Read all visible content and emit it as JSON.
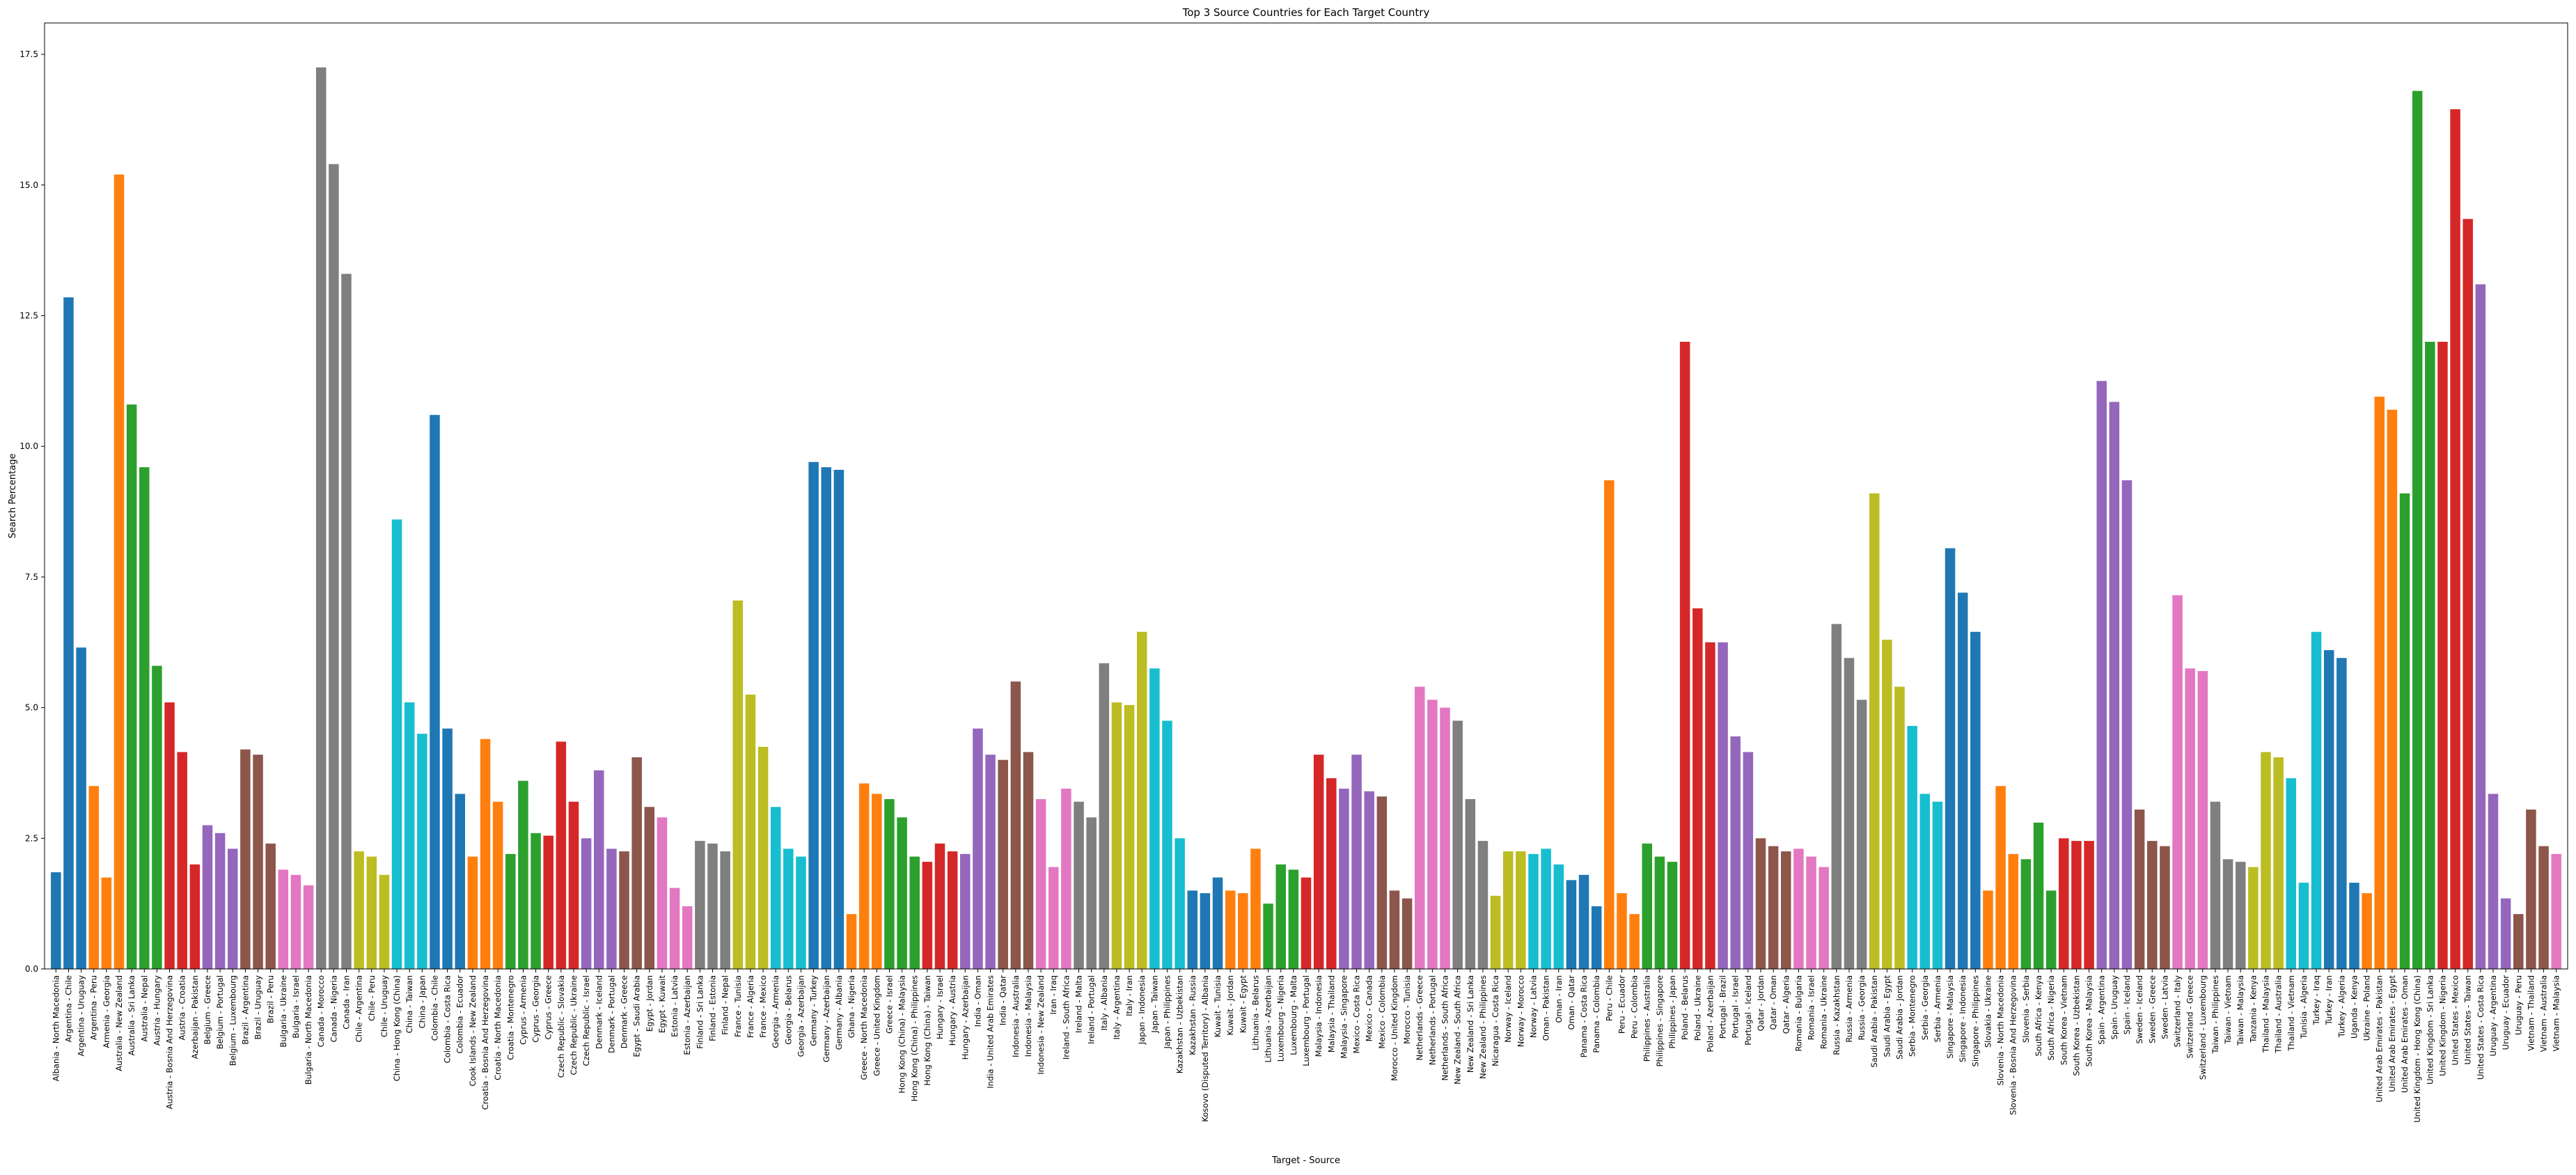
{
  "chart_data": {
    "type": "bar",
    "title": "Top 3 Source Countries for Each Target Country",
    "xlabel": "Target - Source",
    "ylabel": "Search Percentage",
    "ylim": [
      0,
      18.1
    ],
    "y_ticks": [
      "0.0",
      "2.5",
      "5.0",
      "7.5",
      "10.0",
      "12.5",
      "15.0",
      "17.5"
    ],
    "grid": false,
    "legend": "none",
    "palette": [
      "#1f77b4",
      "#ff7f0e",
      "#2ca02c",
      "#d62728",
      "#9467bd",
      "#8c564b",
      "#e377c2",
      "#7f7f7f",
      "#bcbd22",
      "#17becf"
    ],
    "categories": [
      "Albania - North Macedonia",
      "Argentina - Chile",
      "Argentina - Uruguay",
      "Argentina - Peru",
      "Armenia - Georgia",
      "Australia - New Zealand",
      "Australia - Sri Lanka",
      "Australia - Nepal",
      "Austria - Hungary",
      "Austria - Bosnia And Herzegovina",
      "Austria - Croatia",
      "Azerbaijan - Pakistan",
      "Belgium - Greece",
      "Belgium - Portugal",
      "Belgium - Luxembourg",
      "Brazil - Argentina",
      "Brazil - Uruguay",
      "Brazil - Peru",
      "Bulgaria - Ukraine",
      "Bulgaria - Israel",
      "Bulgaria - North Macedonia",
      "Canada - Morocco",
      "Canada - Nigeria",
      "Canada - Iran",
      "Chile - Argentina",
      "Chile - Peru",
      "Chile - Uruguay",
      "China - Hong Kong (China)",
      "China - Taiwan",
      "China - Japan",
      "Colombia - Chile",
      "Colombia - Costa Rica",
      "Colombia - Ecuador",
      "Cook Islands - New Zealand",
      "Croatia - Bosnia And Herzegovina",
      "Croatia - North Macedonia",
      "Croatia - Montenegro",
      "Cyprus - Armenia",
      "Cyprus - Georgia",
      "Cyprus - Greece",
      "Czech Republic - Slovakia",
      "Czech Republic - Ukraine",
      "Czech Republic - Israel",
      "Denmark - Iceland",
      "Denmark - Portugal",
      "Denmark - Greece",
      "Egypt - Saudi Arabia",
      "Egypt - Jordan",
      "Egypt - Kuwait",
      "Estonia - Latvia",
      "Estonia - Azerbaijan",
      "Finland - Sri Lanka",
      "Finland - Estonia",
      "Finland - Nepal",
      "France - Tunisia",
      "France - Algeria",
      "France - Mexico",
      "Georgia - Armenia",
      "Georgia - Belarus",
      "Georgia - Azerbaijan",
      "Germany - Turkey",
      "Germany - Azerbaijan",
      "Germany - Albania",
      "Ghana - Nigeria",
      "Greece - North Macedonia",
      "Greece - United Kingdom",
      "Greece - Israel",
      "Hong Kong (China) - Malaysia",
      "Hong Kong (China) - Philippines",
      "Hong Kong (China) - Taiwan",
      "Hungary - Israel",
      "Hungary - Austria",
      "Hungary - Azerbaijan",
      "India - Oman",
      "India - United Arab Emirates",
      "India - Qatar",
      "Indonesia - Australia",
      "Indonesia - Malaysia",
      "Indonesia - New Zealand",
      "Iran - Iraq",
      "Ireland - South Africa",
      "Ireland - Malta",
      "Ireland - Portugal",
      "Italy - Albania",
      "Italy - Argentina",
      "Italy - Iran",
      "Japan - Indonesia",
      "Japan - Taiwan",
      "Japan - Philippines",
      "Kazakhstan - Uzbekistan",
      "Kazakhstan - Russia",
      "Kosovo (Disputed Territory) - Albania",
      "Kuwait - Tunisia",
      "Kuwait - Jordan",
      "Kuwait - Egypt",
      "Lithuania - Belarus",
      "Lithuania - Azerbaijan",
      "Luxembourg - Nigeria",
      "Luxembourg - Malta",
      "Luxembourg - Portugal",
      "Malaysia - Indonesia",
      "Malaysia - Thailand",
      "Malaysia - Singapore",
      "Mexico - Costa Rica",
      "Mexico - Canada",
      "Mexico - Colombia",
      "Morocco - United Kingdom",
      "Morocco - Tunisia",
      "Netherlands - Greece",
      "Netherlands - Portugal",
      "Netherlands - South Africa",
      "New Zealand - South Africa",
      "New Zealand - Sri Lanka",
      "New Zealand - Philippines",
      "Nicaragua - Costa Rica",
      "Norway - Iceland",
      "Norway - Morocco",
      "Norway - Latvia",
      "Oman - Pakistan",
      "Oman - Iran",
      "Oman - Qatar",
      "Panama - Costa Rica",
      "Panama - Colombia",
      "Peru - Chile",
      "Peru - Ecuador",
      "Peru - Colombia",
      "Philippines - Australia",
      "Philippines - Singapore",
      "Philippines - Japan",
      "Poland - Belarus",
      "Poland - Ukraine",
      "Poland - Azerbaijan",
      "Portugal - Brazil",
      "Portugal - Israel",
      "Portugal - Iceland",
      "Qatar - Jordan",
      "Qatar - Oman",
      "Qatar - Algeria",
      "Romania - Bulgaria",
      "Romania - Israel",
      "Romania - Ukraine",
      "Russia - Kazakhstan",
      "Russia - Armenia",
      "Russia - Georgia",
      "Saudi Arabia - Pakistan",
      "Saudi Arabia - Egypt",
      "Saudi Arabia - Jordan",
      "Serbia - Montenegro",
      "Serbia - Georgia",
      "Serbia - Armenia",
      "Singapore - Malaysia",
      "Singapore - Indonesia",
      "Singapore - Philippines",
      "Slovakia - Ukraine",
      "Slovenia - North Macedonia",
      "Slovenia - Bosnia And Herzegovina",
      "Slovenia - Serbia",
      "South Africa - Kenya",
      "South Africa - Nigeria",
      "South Korea - Vietnam",
      "South Korea - Uzbekistan",
      "South Korea - Malaysia",
      "Spain - Argentina",
      "Spain - Uruguay",
      "Spain - Iceland",
      "Sweden - Iceland",
      "Sweden - Greece",
      "Sweden - Latvia",
      "Switzerland - Italy",
      "Switzerland - Greece",
      "Switzerland - Luxembourg",
      "Taiwan - Philippines",
      "Taiwan - Vietnam",
      "Taiwan - Malaysia",
      "Tanzania - Kenya",
      "Thailand - Malaysia",
      "Thailand - Australia",
      "Thailand - Vietnam",
      "Tunisia - Algeria",
      "Turkey - Iraq",
      "Turkey - Iran",
      "Turkey - Algeria",
      "Uganda - Kenya",
      "Ukraine - Poland",
      "United Arab Emirates - Pakistan",
      "United Arab Emirates - Egypt",
      "United Arab Emirates - Oman",
      "United Kingdom - Hong Kong (China)",
      "United Kingdom - Sri Lanka",
      "United Kingdom - Nigeria",
      "United States - Mexico",
      "United States - Taiwan",
      "United States - Costa Rica",
      "Uruguay - Argentina",
      "Uruguay - Ecuador",
      "Uruguay - Peru",
      "Vietnam - Thailand",
      "Vietnam - Australia",
      "Vietnam - Malaysia"
    ],
    "values": [
      1.85,
      12.85,
      6.15,
      3.5,
      1.75,
      15.2,
      10.8,
      9.6,
      5.8,
      5.1,
      4.15,
      2.0,
      2.75,
      2.6,
      2.3,
      4.2,
      4.1,
      2.4,
      1.9,
      1.8,
      1.6,
      17.25,
      15.4,
      13.3,
      2.25,
      2.15,
      1.8,
      8.6,
      5.1,
      4.5,
      10.6,
      4.6,
      3.35,
      2.15,
      4.4,
      3.2,
      2.2,
      3.6,
      2.6,
      2.55,
      4.35,
      3.2,
      2.5,
      3.8,
      2.3,
      2.25,
      4.05,
      3.1,
      2.9,
      1.55,
      1.2,
      2.45,
      2.4,
      2.25,
      7.05,
      5.25,
      4.25,
      3.1,
      2.3,
      2.15,
      9.7,
      9.6,
      9.55,
      1.05,
      3.55,
      3.35,
      3.25,
      2.9,
      2.15,
      2.05,
      2.4,
      2.25,
      2.2,
      4.6,
      4.1,
      4.0,
      5.5,
      4.15,
      3.25,
      1.95,
      3.45,
      3.2,
      2.9,
      5.85,
      5.1,
      5.05,
      6.45,
      5.75,
      4.75,
      2.5,
      1.5,
      1.45,
      1.75,
      1.5,
      1.45,
      2.3,
      1.25,
      2.0,
      1.9,
      1.75,
      4.1,
      3.65,
      3.45,
      4.1,
      3.4,
      3.3,
      1.5,
      1.35,
      5.4,
      5.15,
      5.0,
      4.75,
      3.25,
      2.45,
      1.4,
      2.25,
      2.25,
      2.2,
      2.3,
      2.0,
      1.7,
      1.8,
      1.2,
      9.35,
      1.45,
      1.05,
      2.4,
      2.15,
      2.05,
      12.0,
      6.9,
      6.25,
      6.25,
      4.45,
      4.15,
      2.5,
      2.35,
      2.25,
      2.3,
      2.15,
      1.95,
      6.6,
      5.95,
      5.15,
      9.1,
      6.3,
      5.4,
      4.65,
      3.35,
      3.2,
      8.05,
      7.2,
      6.45,
      1.5,
      3.5,
      2.2,
      2.1,
      2.8,
      1.5,
      2.5,
      2.45,
      2.45,
      11.25,
      10.85,
      9.35,
      3.05,
      2.45,
      2.35,
      7.15,
      5.75,
      5.7,
      3.2,
      2.1,
      2.05,
      1.95,
      4.15,
      4.05,
      3.65,
      1.65,
      6.45,
      6.1,
      5.95,
      1.65,
      1.45,
      10.95,
      10.7,
      9.1,
      16.8,
      12.0,
      12.0,
      16.45,
      14.35,
      13.1,
      3.35,
      1.35,
      1.05,
      3.05,
      2.35,
      2.2
    ]
  }
}
